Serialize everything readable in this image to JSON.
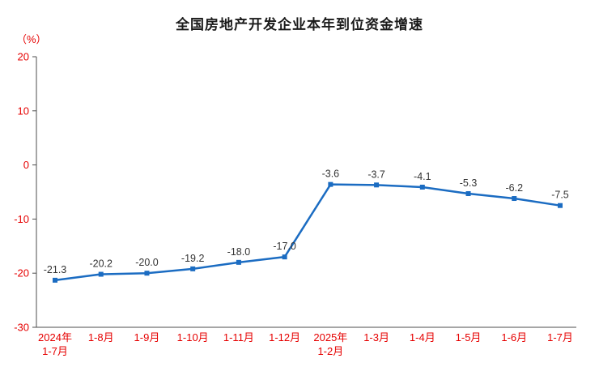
{
  "chart_data": {
    "type": "line",
    "title": "全国房地产开发企业本年到位资金增速",
    "unit_label": "（%）",
    "categories": [
      "2024年\n1-7月",
      "1-8月",
      "1-9月",
      "1-10月",
      "1-11月",
      "1-12月",
      "2025年\n1-2月",
      "1-3月",
      "1-4月",
      "1-5月",
      "1-6月",
      "1-7月"
    ],
    "values": [
      -21.3,
      -20.2,
      -20.0,
      -19.2,
      -18.0,
      -17.0,
      -3.6,
      -3.7,
      -4.1,
      -5.3,
      -6.2,
      -7.5
    ],
    "ylim": [
      -30,
      20
    ],
    "yticks": [
      20,
      10,
      0,
      -10,
      -20,
      -30
    ],
    "xlabel": "",
    "ylabel": "",
    "grid": false,
    "legend": "none",
    "line_color": "#1b6cc2",
    "marker_shape": "square",
    "data_label_color": "#333333",
    "axis_color": "#4d4d4d",
    "tick_label_color": "#e60000"
  }
}
